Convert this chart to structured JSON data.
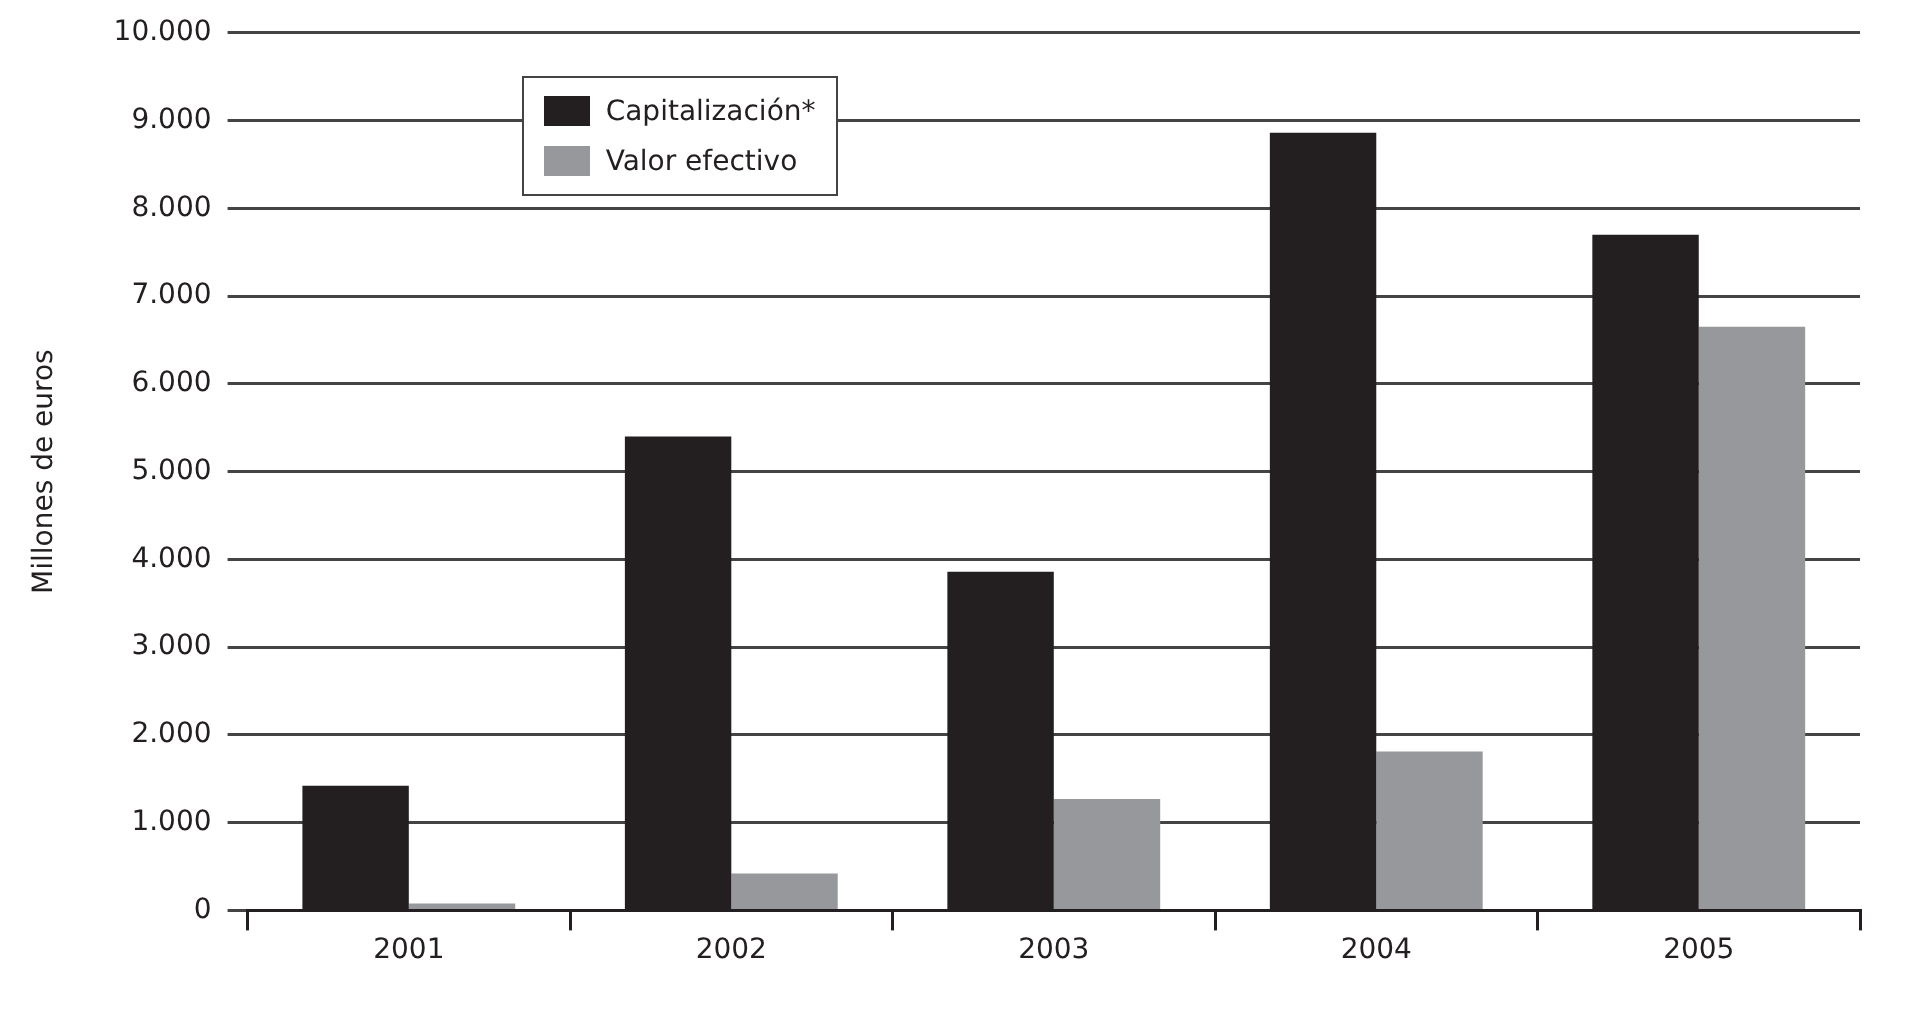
{
  "chart_data": {
    "type": "bar",
    "ylabel": "Millones de euros",
    "categories": [
      "2001",
      "2002",
      "2003",
      "2004",
      "2005"
    ],
    "series": [
      {
        "name": "Capitalización*",
        "color": "#231f20",
        "values": [
          1420,
          5400,
          3860,
          8860,
          7700
        ]
      },
      {
        "name": "Valor efectivo",
        "color": "#97989b",
        "values": [
          80,
          420,
          1270,
          1810,
          6650
        ]
      }
    ],
    "ylim": [
      0,
      10000
    ],
    "yticks": [
      0,
      {
        "value": 1000,
        "label": "1.000"
      },
      {
        "value": 2000,
        "label": "2.000"
      },
      {
        "value": 3000,
        "label": "3.000"
      },
      {
        "value": 4000,
        "label": "4.000"
      },
      {
        "value": 5000,
        "label": "5.000"
      },
      {
        "value": 6000,
        "label": "6.000"
      },
      {
        "value": 7000,
        "label": "7.000"
      },
      {
        "value": 8000,
        "label": "8.000"
      },
      {
        "value": 9000,
        "label": "9.000"
      },
      {
        "value": 10000,
        "label": "10.000"
      }
    ],
    "grid": "y",
    "legend": "top left"
  }
}
